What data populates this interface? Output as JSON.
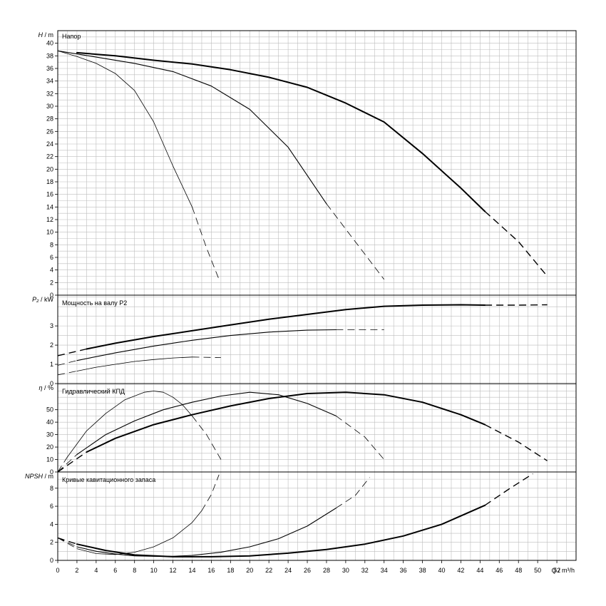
{
  "chart_data": {
    "type": "line",
    "colors": {
      "grid": "#bdbdbd",
      "frame": "#000000",
      "curve": "#000000",
      "background": "#ffffff"
    },
    "x_axis": {
      "label_name": "Q",
      "label_unit": "m³/h",
      "ticks": [
        "0",
        "2",
        "4",
        "6",
        "8",
        "10",
        "12",
        "14",
        "16",
        "18",
        "20",
        "22",
        "24",
        "26",
        "28",
        "30",
        "32",
        "34",
        "36",
        "38",
        "40",
        "42",
        "44",
        "46",
        "48",
        "50",
        "52"
      ],
      "range": [
        0,
        54
      ]
    },
    "panels": [
      {
        "id": "head",
        "title": "Напор",
        "ylabel_name": "H",
        "ylabel_unit": "m",
        "ylim": [
          0,
          42
        ],
        "yticks": [
          "0",
          "2",
          "4",
          "6",
          "8",
          "10",
          "12",
          "14",
          "16",
          "18",
          "20",
          "22",
          "24",
          "26",
          "28",
          "30",
          "32",
          "34",
          "36",
          "38",
          "40"
        ],
        "series": [
          {
            "weight": "thin",
            "solid": [
              [
                0,
                38.8
              ],
              [
                2,
                37.9
              ],
              [
                4,
                36.8
              ],
              [
                6,
                35.2
              ],
              [
                8,
                32.5
              ],
              [
                10,
                27.5
              ],
              [
                12,
                20.5
              ],
              [
                14,
                14.0
              ]
            ],
            "dashed": [
              [
                14,
                14.0
              ],
              [
                15.5,
                7.5
              ],
              [
                16.8,
                2.5
              ]
            ]
          },
          {
            "weight": "medium",
            "solid": [
              [
                0,
                38.8
              ],
              [
                4,
                37.8
              ],
              [
                8,
                36.8
              ],
              [
                12,
                35.5
              ],
              [
                16,
                33.2
              ],
              [
                20,
                29.5
              ],
              [
                24,
                23.5
              ],
              [
                28,
                14.5
              ]
            ],
            "dashed": [
              [
                28,
                14.5
              ],
              [
                30.5,
                9.5
              ],
              [
                32.5,
                5.5
              ],
              [
                34,
                2.5
              ]
            ]
          },
          {
            "weight": "thick",
            "solid": [
              [
                2,
                38.5
              ],
              [
                6,
                38.0
              ],
              [
                10,
                37.3
              ],
              [
                14,
                36.7
              ],
              [
                18,
                35.8
              ],
              [
                22,
                34.6
              ],
              [
                26,
                33.0
              ],
              [
                30,
                30.5
              ],
              [
                34,
                27.5
              ],
              [
                38,
                22.5
              ],
              [
                42,
                17.0
              ],
              [
                44.5,
                13.3
              ]
            ],
            "dashed": [
              [
                44.5,
                13.3
              ],
              [
                48,
                8.5
              ],
              [
                51,
                3.0
              ]
            ]
          }
        ]
      },
      {
        "id": "power",
        "title": "Мощность на валу P2",
        "ylabel_name": "P₂",
        "ylabel_unit": "kW",
        "ylim": [
          0,
          4.6
        ],
        "yticks": [
          "0",
          "1",
          "2",
          "3"
        ],
        "series": [
          {
            "weight": "thin",
            "dashed_before": [
              [
                0,
                0.45
              ],
              [
                2,
                0.65
              ]
            ],
            "solid": [
              [
                2,
                0.65
              ],
              [
                4,
                0.85
              ],
              [
                6,
                1.0
              ],
              [
                8,
                1.15
              ],
              [
                10,
                1.25
              ],
              [
                12,
                1.33
              ],
              [
                14,
                1.38
              ]
            ],
            "dashed": [
              [
                14,
                1.38
              ],
              [
                17,
                1.35
              ]
            ]
          },
          {
            "weight": "medium",
            "dashed_before": [
              [
                0,
                0.95
              ],
              [
                2,
                1.2
              ]
            ],
            "solid": [
              [
                2,
                1.2
              ],
              [
                6,
                1.6
              ],
              [
                10,
                1.95
              ],
              [
                14,
                2.25
              ],
              [
                18,
                2.5
              ],
              [
                22,
                2.68
              ],
              [
                26,
                2.78
              ],
              [
                29,
                2.8
              ]
            ],
            "dashed": [
              [
                29,
                2.8
              ],
              [
                34,
                2.8
              ]
            ]
          },
          {
            "weight": "thick",
            "dashed_before": [
              [
                0,
                1.45
              ],
              [
                3,
                1.8
              ]
            ],
            "solid": [
              [
                3,
                1.8
              ],
              [
                6,
                2.1
              ],
              [
                10,
                2.45
              ],
              [
                14,
                2.75
              ],
              [
                18,
                3.05
              ],
              [
                22,
                3.35
              ],
              [
                26,
                3.6
              ],
              [
                30,
                3.85
              ],
              [
                34,
                4.02
              ],
              [
                38,
                4.08
              ],
              [
                42,
                4.1
              ],
              [
                44.5,
                4.08
              ]
            ],
            "dashed": [
              [
                44.5,
                4.08
              ],
              [
                48,
                4.08
              ],
              [
                51,
                4.1
              ]
            ]
          }
        ]
      },
      {
        "id": "eff",
        "title": "Гидравлический КПД",
        "ylabel_name": "η",
        "ylabel_unit": "%",
        "ylim": [
          0,
          71
        ],
        "yticks": [
          "0",
          "10",
          "20",
          "30",
          "40",
          "50"
        ],
        "series": [
          {
            "weight": "thin",
            "dashed_before": [
              [
                0,
                0
              ],
              [
                1,
                12
              ]
            ],
            "solid": [
              [
                1,
                12
              ],
              [
                3,
                33
              ],
              [
                5,
                47
              ],
              [
                7,
                58
              ],
              [
                9,
                64
              ],
              [
                10,
                65
              ],
              [
                11,
                64
              ],
              [
                12,
                60
              ],
              [
                13,
                54
              ],
              [
                14,
                45
              ]
            ],
            "dashed": [
              [
                14,
                45
              ],
              [
                15.5,
                30
              ],
              [
                17,
                10
              ]
            ]
          },
          {
            "weight": "medium",
            "dashed_before": [
              [
                0,
                0
              ],
              [
                2,
                14
              ]
            ],
            "solid": [
              [
                2,
                14
              ],
              [
                5,
                30
              ],
              [
                8,
                41
              ],
              [
                11,
                50
              ],
              [
                14,
                56
              ],
              [
                17,
                61
              ],
              [
                20,
                64
              ],
              [
                23,
                62
              ],
              [
                26,
                55
              ],
              [
                29,
                45
              ]
            ],
            "dashed": [
              [
                29,
                45
              ],
              [
                32,
                28
              ],
              [
                34,
                10
              ]
            ]
          },
          {
            "weight": "thick",
            "dashed_before": [
              [
                0,
                0
              ],
              [
                3,
                16
              ]
            ],
            "solid": [
              [
                3,
                16
              ],
              [
                6,
                27
              ],
              [
                10,
                38
              ],
              [
                14,
                46
              ],
              [
                18,
                53
              ],
              [
                22,
                59
              ],
              [
                26,
                63
              ],
              [
                30,
                64
              ],
              [
                34,
                62
              ],
              [
                38,
                56
              ],
              [
                42,
                46
              ],
              [
                44.5,
                38
              ]
            ],
            "dashed": [
              [
                44.5,
                38
              ],
              [
                48,
                24
              ],
              [
                51,
                9
              ]
            ]
          }
        ]
      },
      {
        "id": "npsh",
        "title": "Кривые кавитационного запаса",
        "ylabel_name": "NPSH",
        "ylabel_unit": "m",
        "ylim": [
          0,
          9.8
        ],
        "yticks": [
          "0",
          "2",
          "4",
          "6",
          "8"
        ],
        "series": [
          {
            "weight": "thin",
            "dashed_before": [
              [
                0,
                2.5
              ],
              [
                2,
                1.3
              ]
            ],
            "solid": [
              [
                2,
                1.3
              ],
              [
                4,
                0.75
              ],
              [
                6,
                0.65
              ],
              [
                8,
                0.9
              ],
              [
                10,
                1.5
              ],
              [
                12,
                2.5
              ],
              [
                14,
                4.2
              ],
              [
                15,
                5.5
              ]
            ],
            "dashed": [
              [
                15,
                5.5
              ],
              [
                16,
                7.3
              ],
              [
                16.8,
                9.5
              ]
            ]
          },
          {
            "weight": "medium",
            "dashed_before": [
              [
                0,
                2.5
              ],
              [
                2,
                1.5
              ]
            ],
            "solid": [
              [
                2,
                1.5
              ],
              [
                4,
                1.0
              ],
              [
                6,
                0.7
              ],
              [
                8,
                0.5
              ],
              [
                10,
                0.45
              ],
              [
                12,
                0.45
              ],
              [
                14,
                0.55
              ],
              [
                17,
                0.9
              ],
              [
                20,
                1.5
              ],
              [
                23,
                2.4
              ],
              [
                26,
                3.8
              ],
              [
                29,
                5.8
              ]
            ],
            "dashed": [
              [
                29,
                5.8
              ],
              [
                31,
                7.2
              ],
              [
                32.5,
                9.2
              ]
            ]
          },
          {
            "weight": "thick",
            "dashed_before": [
              [
                0,
                2.5
              ],
              [
                2,
                1.8
              ]
            ],
            "solid": [
              [
                2,
                1.8
              ],
              [
                5,
                1.1
              ],
              [
                8,
                0.6
              ],
              [
                12,
                0.4
              ],
              [
                16,
                0.4
              ],
              [
                20,
                0.5
              ],
              [
                24,
                0.8
              ],
              [
                28,
                1.2
              ],
              [
                32,
                1.8
              ],
              [
                36,
                2.7
              ],
              [
                40,
                4.0
              ],
              [
                44.5,
                6.1
              ]
            ],
            "dashed": [
              [
                44.5,
                6.1
              ],
              [
                47,
                7.9
              ],
              [
                49.5,
                9.6
              ]
            ]
          }
        ]
      }
    ]
  }
}
